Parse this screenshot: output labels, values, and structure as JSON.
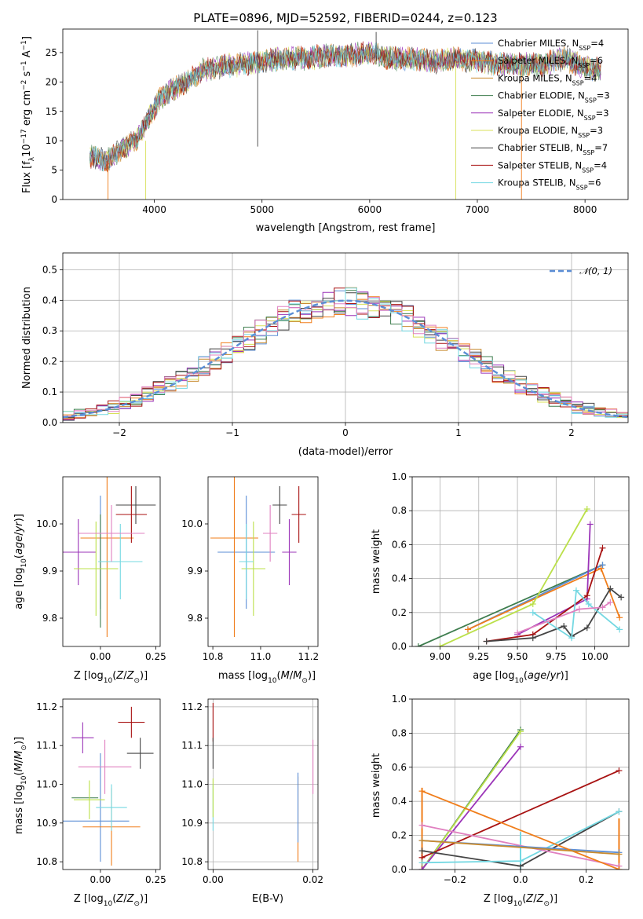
{
  "colors": [
    "#5b8ed6",
    "#f07d1a",
    "#c88a2e",
    "#3e7d4e",
    "#9b34b8",
    "#d8e05a",
    "#444444",
    "#a81212",
    "#74d8e2",
    "#e080c0",
    "#bbe04a"
  ],
  "chart_data": [
    {
      "id": "spectrum",
      "type": "line",
      "title": "PLATE=0896, MJD=52592, FIBERID=0244, z=0.123",
      "xlabel": "wavelength [Angstrom, rest frame]",
      "ylabel": "Flux [f_λ10^-17 erg cm^-2 s^-1 A^-1]",
      "xlim": [
        3150,
        8400
      ],
      "ylim": [
        0,
        29
      ],
      "xticks": [
        4000,
        5000,
        6000,
        7000,
        8000
      ],
      "yticks": [
        0,
        5,
        10,
        15,
        20,
        25
      ],
      "grid": false,
      "legend_position": "top-right",
      "series": [
        {
          "name": "Chabrier MILES, N_SSP=4",
          "color_index": 0
        },
        {
          "name": "Salpeter MILES, N_SSP=6",
          "color_index": 1
        },
        {
          "name": "Kroupa MILES, N_SSP=4",
          "color_index": 2
        },
        {
          "name": "Chabrier ELODIE, N_SSP=3",
          "color_index": 3
        },
        {
          "name": "Salpeter ELODIE, N_SSP=3",
          "color_index": 4
        },
        {
          "name": "Kroupa ELODIE, N_SSP=3",
          "color_index": 5
        },
        {
          "name": "Chabrier STELIB, N_SSP=7",
          "color_index": 6
        },
        {
          "name": "Salpeter STELIB, N_SSP=4",
          "color_index": 7
        },
        {
          "name": "Kroupa STELIB, N_SSP=6",
          "color_index": 8
        }
      ],
      "continuum": {
        "x": [
          3400,
          3550,
          3700,
          3850,
          3950,
          4050,
          4150,
          4300,
          4450,
          4600,
          4800,
          5000,
          5200,
          5400,
          5600,
          5800,
          6000,
          6200,
          6400,
          6600,
          6800,
          7000,
          7200,
          7400,
          7600,
          7800,
          8000,
          8150
        ],
        "y": [
          7.5,
          6.5,
          8.5,
          10.5,
          14.0,
          17.0,
          18.5,
          20.0,
          22.0,
          22.5,
          23.0,
          23.5,
          24.0,
          24.0,
          24.5,
          24.5,
          25.0,
          24.0,
          24.0,
          23.5,
          24.0,
          23.5,
          23.0,
          23.0,
          23.0,
          24.0,
          22.5,
          22.0
        ]
      },
      "spike_lines": [
        {
          "x": 4960,
          "y0": 9,
          "y1": 28.8,
          "color_index": 6
        },
        {
          "x": 6800,
          "y0": 0,
          "y1": 23.5,
          "color_index": 5
        },
        {
          "x": 7410,
          "y0": 0,
          "y1": 23.0,
          "color_index": 1
        },
        {
          "x": 6060,
          "y0": 23,
          "y1": 28.5,
          "color_index": 6
        },
        {
          "x": 3570,
          "y0": 0,
          "y1": 6.5,
          "color_index": 1
        },
        {
          "x": 3920,
          "y0": 0,
          "y1": 10,
          "color_index": 5
        }
      ]
    },
    {
      "id": "residual-histogram",
      "type": "bar",
      "xlabel": "(data-model)/error",
      "ylabel": "Normed distribution",
      "xlim": [
        -2.5,
        2.5
      ],
      "ylim": [
        0,
        0.555
      ],
      "xticks": [
        -2,
        -1,
        0,
        1,
        2
      ],
      "yticks": [
        0.0,
        0.1,
        0.2,
        0.3,
        0.4,
        0.5
      ],
      "grid": true,
      "legend_position": "top-right",
      "legend": [
        "N(0,1)"
      ],
      "bin_width": 0.1,
      "reference_curve": {
        "name": "N(0,1)",
        "mean": 0,
        "sigma": 1,
        "color_index": 0
      },
      "base_density": {
        "x": [
          -2.5,
          -2.0,
          -1.5,
          -1.0,
          -0.5,
          0.0,
          0.5,
          1.0,
          1.5,
          2.0,
          2.5
        ],
        "y": [
          0.018,
          0.054,
          0.13,
          0.242,
          0.352,
          0.399,
          0.352,
          0.242,
          0.13,
          0.054,
          0.018
        ]
      }
    },
    {
      "id": "age-vs-z",
      "type": "scatter",
      "xlabel": "Z [log10(Z/Z⊙)]",
      "ylabel": "age [log10(age/yr)]",
      "xlim": [
        -0.17,
        0.27
      ],
      "ylim": [
        9.74,
        10.1
      ],
      "xticks": [
        0.0,
        0.25
      ],
      "yticks": [
        9.8,
        9.9,
        10.0
      ],
      "grid": false,
      "points": [
        {
          "x": 0.0,
          "y": 9.94,
          "xerr": 0.0,
          "yerr": 0.12,
          "color_index": 0
        },
        {
          "x": 0.03,
          "y": 9.97,
          "xerr": 0.12,
          "yerr": 0.21,
          "color_index": 1
        },
        {
          "x": 0.0,
          "y": 9.9,
          "xerr": 0.0,
          "yerr": 0.12,
          "color_index": 3
        },
        {
          "x": -0.1,
          "y": 9.94,
          "xerr": 0.08,
          "yerr": 0.07,
          "color_index": 4
        },
        {
          "x": -0.02,
          "y": 9.905,
          "xerr": 0.1,
          "yerr": 0.1,
          "color_index": 10
        },
        {
          "x": 0.16,
          "y": 10.04,
          "xerr": 0.09,
          "yerr": 0.04,
          "color_index": 6
        },
        {
          "x": 0.14,
          "y": 10.02,
          "xerr": 0.07,
          "yerr": 0.06,
          "color_index": 7
        },
        {
          "x": 0.09,
          "y": 9.92,
          "xerr": 0.1,
          "yerr": 0.08,
          "color_index": 8
        },
        {
          "x": 0.05,
          "y": 9.98,
          "xerr": 0.15,
          "yerr": 0.06,
          "color_index": 9
        }
      ]
    },
    {
      "id": "age-vs-mass",
      "type": "scatter",
      "xlabel": "mass [log10(M/M⊙)]",
      "ylabel": "",
      "xlim": [
        10.78,
        11.24
      ],
      "ylim": [
        9.74,
        10.1
      ],
      "xticks": [
        10.8,
        11.0,
        11.2
      ],
      "yticks": [
        9.8,
        9.9,
        10.0
      ],
      "grid": false,
      "points": [
        {
          "x": 10.94,
          "y": 9.94,
          "xerr": 0.12,
          "yerr": 0.12,
          "color_index": 0
        },
        {
          "x": 10.89,
          "y": 9.97,
          "xerr": 0.1,
          "yerr": 0.21,
          "color_index": 1
        },
        {
          "x": 10.97,
          "y": 9.905,
          "xerr": 0.05,
          "yerr": 0.1,
          "color_index": 10
        },
        {
          "x": 11.12,
          "y": 9.94,
          "xerr": 0.03,
          "yerr": 0.07,
          "color_index": 4
        },
        {
          "x": 11.08,
          "y": 10.04,
          "xerr": 0.03,
          "yerr": 0.04,
          "color_index": 6
        },
        {
          "x": 11.16,
          "y": 10.02,
          "xerr": 0.03,
          "yerr": 0.06,
          "color_index": 7
        },
        {
          "x": 10.94,
          "y": 9.92,
          "xerr": 0.03,
          "yerr": 0.08,
          "color_index": 8
        },
        {
          "x": 11.04,
          "y": 9.98,
          "xerr": 0.03,
          "yerr": 0.06,
          "color_index": 9
        }
      ]
    },
    {
      "id": "weight-vs-age",
      "type": "line",
      "xlabel": "age [log10(age/yr)]",
      "ylabel": "mass weight",
      "xlim": [
        8.82,
        10.22
      ],
      "ylim": [
        0,
        1.0
      ],
      "xticks": [
        9.0,
        9.25,
        9.5,
        9.75,
        10.0
      ],
      "yticks": [
        0.0,
        0.2,
        0.4,
        0.6,
        0.8,
        1.0
      ],
      "grid": true,
      "series": [
        {
          "color_index": 3,
          "x": [
            8.86,
            10.05
          ],
          "y": [
            0.0,
            0.48
          ]
        },
        {
          "color_index": 0,
          "x": [
            9.18,
            10.05
          ],
          "y": [
            0.1,
            0.48
          ]
        },
        {
          "color_index": 1,
          "x": [
            9.18,
            10.04,
            10.16
          ],
          "y": [
            0.1,
            0.46,
            0.17
          ]
        },
        {
          "color_index": 10,
          "x": [
            9.0,
            9.6,
            9.95
          ],
          "y": [
            0.0,
            0.25,
            0.81
          ]
        },
        {
          "color_index": 4,
          "x": [
            9.5,
            9.95,
            9.97
          ],
          "y": [
            0.07,
            0.28,
            0.72
          ]
        },
        {
          "color_index": 7,
          "x": [
            9.3,
            9.6,
            9.95,
            10.05
          ],
          "y": [
            0.03,
            0.07,
            0.3,
            0.58
          ]
        },
        {
          "color_index": 6,
          "x": [
            9.3,
            9.6,
            9.8,
            9.85,
            9.95,
            10.1,
            10.17
          ],
          "y": [
            0.03,
            0.05,
            0.12,
            0.06,
            0.11,
            0.34,
            0.29
          ]
        },
        {
          "color_index": 8,
          "x": [
            9.6,
            9.85,
            9.88,
            9.96,
            10.16
          ],
          "y": [
            0.2,
            0.05,
            0.33,
            0.25,
            0.1
          ]
        },
        {
          "color_index": 9,
          "x": [
            9.5,
            9.9,
            10.05,
            10.1
          ],
          "y": [
            0.08,
            0.22,
            0.23,
            0.26
          ]
        }
      ]
    },
    {
      "id": "mass-vs-z",
      "type": "scatter",
      "xlabel": "Z [log10(Z/Z⊙)]",
      "ylabel": "mass [log10(M/M⊙)]",
      "xlim": [
        -0.17,
        0.27
      ],
      "ylim": [
        10.78,
        11.22
      ],
      "xticks": [
        0.0,
        0.25
      ],
      "yticks": [
        10.8,
        10.9,
        11.0,
        11.1,
        11.2
      ],
      "grid": false,
      "points": [
        {
          "x": 0.0,
          "y": 10.94,
          "xerr": 0.0,
          "yerr": 0.14,
          "color_index": 0
        },
        {
          "x": 0.05,
          "y": 10.89,
          "xerr": 0.13,
          "yerr": 0.1,
          "color_index": 1
        },
        {
          "x": -0.03,
          "y": 10.905,
          "xerr": 0.16,
          "yerr": 0.0,
          "color_index": 0
        },
        {
          "x": -0.07,
          "y": 10.965,
          "xerr": 0.06,
          "yerr": 0.0,
          "color_index": 3
        },
        {
          "x": -0.08,
          "y": 11.12,
          "xerr": 0.05,
          "yerr": 0.04,
          "color_index": 4
        },
        {
          "x": -0.05,
          "y": 10.96,
          "xerr": 0.07,
          "yerr": 0.05,
          "color_index": 10
        },
        {
          "x": 0.18,
          "y": 11.08,
          "xerr": 0.06,
          "yerr": 0.04,
          "color_index": 6
        },
        {
          "x": 0.14,
          "y": 11.16,
          "xerr": 0.06,
          "yerr": 0.04,
          "color_index": 7
        },
        {
          "x": 0.05,
          "y": 10.94,
          "xerr": 0.07,
          "yerr": 0.06,
          "color_index": 8
        },
        {
          "x": 0.02,
          "y": 11.045,
          "xerr": 0.12,
          "yerr": 0.07,
          "color_index": 9
        }
      ]
    },
    {
      "id": "mass-vs-ebv",
      "type": "scatter",
      "xlabel": "E(B-V)",
      "ylabel": "",
      "xlim": [
        -0.001,
        0.021
      ],
      "ylim": [
        10.78,
        11.22
      ],
      "xticks": [
        0.0,
        0.02
      ],
      "yticks": [
        10.8,
        10.9,
        11.0,
        11.1,
        11.2
      ],
      "grid": true,
      "points": [
        {
          "x": 0.017,
          "y": 10.91,
          "xerr": 0.0,
          "yerr": 0.11,
          "color_index": 1
        },
        {
          "x": 0.017,
          "y": 10.94,
          "xerr": 0.0,
          "yerr": 0.09,
          "color_index": 0
        },
        {
          "x": 0.0,
          "y": 11.16,
          "xerr": 0.0,
          "yerr": 0.05,
          "color_index": 7
        },
        {
          "x": 0.0,
          "y": 11.08,
          "xerr": 0.0,
          "yerr": 0.04,
          "color_index": 6
        },
        {
          "x": 0.0,
          "y": 10.94,
          "xerr": 0.0,
          "yerr": 0.06,
          "color_index": 8
        },
        {
          "x": 0.0,
          "y": 10.965,
          "xerr": 0.0,
          "yerr": 0.05,
          "color_index": 10
        },
        {
          "x": 0.02,
          "y": 11.045,
          "xerr": 0.0,
          "yerr": 0.07,
          "color_index": 9
        }
      ]
    },
    {
      "id": "weight-vs-z",
      "type": "line",
      "xlabel": "Z [log10(Z/Z⊙)]",
      "ylabel": "mass weight",
      "xlim": [
        -0.33,
        0.33
      ],
      "ylim": [
        0,
        1.0
      ],
      "xticks": [
        -0.2,
        0.0,
        0.2
      ],
      "yticks": [
        0.0,
        0.2,
        0.4,
        0.6,
        0.8,
        1.0
      ],
      "grid": true,
      "series": [
        {
          "color_index": 3,
          "x": [
            -0.3,
            0.0
          ],
          "y": [
            0.0,
            0.82
          ]
        },
        {
          "color_index": 10,
          "x": [
            -0.3,
            0.0
          ],
          "y": [
            0.0,
            0.81
          ]
        },
        {
          "color_index": 4,
          "x": [
            -0.3,
            0.0
          ],
          "y": [
            0.0,
            0.72
          ]
        },
        {
          "color_index": 7,
          "x": [
            -0.3,
            0.3
          ],
          "y": [
            0.07,
            0.58
          ]
        },
        {
          "color_index": 6,
          "x": [
            -0.3,
            0.0,
            0.3
          ],
          "y": [
            0.11,
            0.02,
            0.34
          ]
        },
        {
          "color_index": 8,
          "x": [
            -0.3,
            0.0,
            0.3
          ],
          "y": [
            0.04,
            0.05,
            0.34
          ]
        },
        {
          "color_index": 9,
          "x": [
            -0.3,
            0.3
          ],
          "y": [
            0.26,
            0.02
          ]
        },
        {
          "color_index": 0,
          "x": [
            -0.3,
            0.3
          ],
          "y": [
            0.17,
            0.1
          ]
        },
        {
          "color_index": 1,
          "x": [
            -0.3,
            0.3
          ],
          "y": [
            0.46,
            0.0
          ]
        },
        {
          "color_index": 2,
          "x": [
            -0.3,
            0.3
          ],
          "y": [
            0.17,
            0.09
          ]
        }
      ],
      "vertical_bars": [
        {
          "x": -0.3,
          "y0": 0.0,
          "y1": 0.48,
          "color_index": 1
        },
        {
          "x": 0.3,
          "y0": 0.0,
          "y1": 0.3,
          "color_index": 1
        },
        {
          "x": 0.0,
          "y0": 0.0,
          "y1": 0.22,
          "color_index": 8
        }
      ]
    }
  ]
}
